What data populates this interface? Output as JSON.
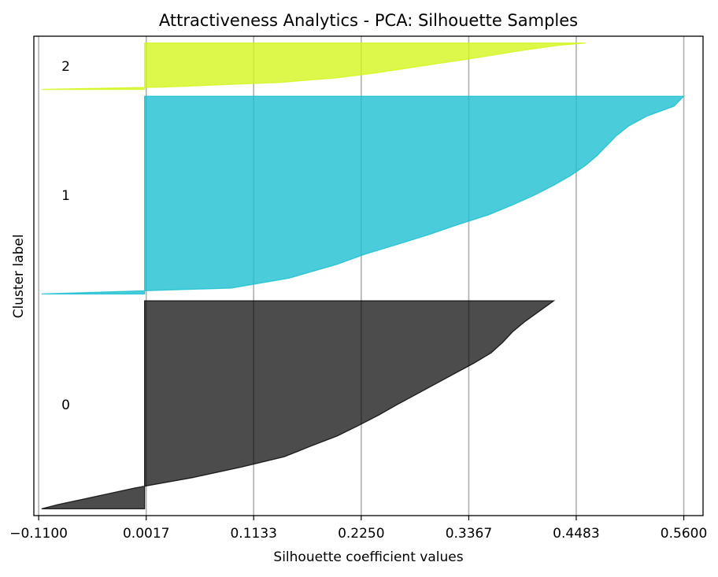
{
  "chart_data": {
    "type": "area",
    "title": "Attractiveness Analytics - PCA: Silhouette Samples",
    "xlabel": "Silhouette coefficient values",
    "ylabel": "Cluster label",
    "xlim": [
      -0.115,
      0.58
    ],
    "xticks": [
      -0.11,
      0.0017,
      0.1133,
      0.225,
      0.3367,
      0.4483,
      0.56
    ],
    "xtick_labels": [
      "−0.1100",
      "0.0017",
      "0.1133",
      "0.2250",
      "0.3367",
      "0.4483",
      "0.5600"
    ],
    "grid_x": true,
    "clusters": [
      {
        "label": "0",
        "color": "#000000",
        "fill_opacity": 0.7,
        "size": 305,
        "min": -0.107,
        "max": 0.425,
        "profile": [
          [
            0,
            -0.107
          ],
          [
            0.02,
            -0.09
          ],
          [
            0.05,
            -0.06
          ],
          [
            0.1,
            -0.01
          ],
          [
            0.15,
            0.05
          ],
          [
            0.2,
            0.1
          ],
          [
            0.25,
            0.145
          ],
          [
            0.3,
            0.172
          ],
          [
            0.35,
            0.2
          ],
          [
            0.4,
            0.222
          ],
          [
            0.45,
            0.243
          ],
          [
            0.5,
            0.262
          ],
          [
            0.55,
            0.282
          ],
          [
            0.6,
            0.302
          ],
          [
            0.65,
            0.322
          ],
          [
            0.7,
            0.342
          ],
          [
            0.75,
            0.36
          ],
          [
            0.8,
            0.372
          ],
          [
            0.85,
            0.382
          ],
          [
            0.9,
            0.395
          ],
          [
            0.95,
            0.41
          ],
          [
            1,
            0.425
          ]
        ]
      },
      {
        "label": "1",
        "color": "#17becf",
        "fill_opacity": 0.78,
        "size": 290,
        "min": -0.107,
        "max": 0.56,
        "profile": [
          [
            0,
            -0.107
          ],
          [
            0.03,
            0.09
          ],
          [
            0.08,
            0.15
          ],
          [
            0.15,
            0.2
          ],
          [
            0.2,
            0.228
          ],
          [
            0.25,
            0.262
          ],
          [
            0.3,
            0.295
          ],
          [
            0.35,
            0.325
          ],
          [
            0.4,
            0.357
          ],
          [
            0.45,
            0.382
          ],
          [
            0.5,
            0.405
          ],
          [
            0.55,
            0.425
          ],
          [
            0.6,
            0.443
          ],
          [
            0.65,
            0.458
          ],
          [
            0.7,
            0.47
          ],
          [
            0.75,
            0.48
          ],
          [
            0.8,
            0.49
          ],
          [
            0.85,
            0.503
          ],
          [
            0.9,
            0.522
          ],
          [
            0.95,
            0.55
          ],
          [
            1,
            0.56
          ]
        ]
      },
      {
        "label": "2",
        "color": "#d4f518",
        "fill_opacity": 0.78,
        "size": 68,
        "min": -0.107,
        "max": 0.458,
        "profile": [
          [
            0,
            -0.107
          ],
          [
            0.05,
            0.02
          ],
          [
            0.15,
            0.14
          ],
          [
            0.25,
            0.2
          ],
          [
            0.35,
            0.238
          ],
          [
            0.45,
            0.27
          ],
          [
            0.55,
            0.302
          ],
          [
            0.65,
            0.335
          ],
          [
            0.75,
            0.365
          ],
          [
            0.85,
            0.395
          ],
          [
            0.95,
            0.43
          ],
          [
            1,
            0.458
          ]
        ]
      }
    ]
  }
}
